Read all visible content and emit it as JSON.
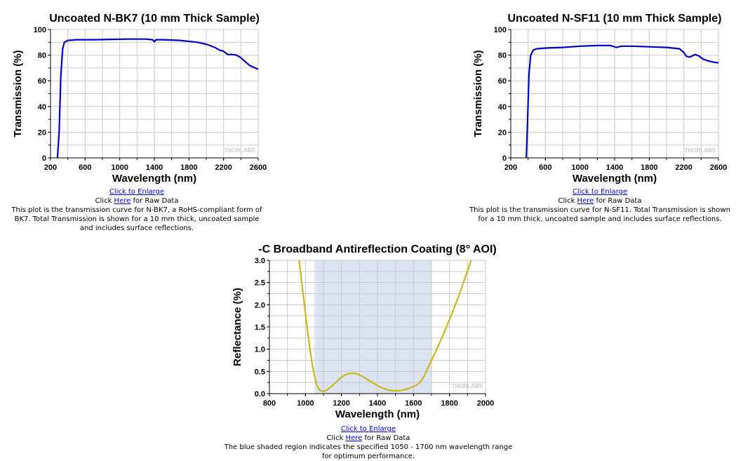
{
  "charts": {
    "bk7": {
      "caption": {
        "enlarge": "Click to Enlarge",
        "raw_prefix": "Click ",
        "raw_link": "Here",
        "raw_suffix": " for Raw Data",
        "description": "This plot is the transmission curve for N-BK7, a RoHS-compliant form of BK7. Total Transmission is shown for a 10 mm thick, uncoated sample and includes surface reflections."
      }
    },
    "sf11": {
      "caption": {
        "enlarge": "Click to Enlarge",
        "raw_prefix": "Click ",
        "raw_link": "Here",
        "raw_suffix": " for Raw Data",
        "description": "This plot is the transmission curve for N-SF11. Total Transmission is shown for a 10 mm thick, uncoated sample and includes surface reflections."
      }
    },
    "coating": {
      "caption": {
        "enlarge": "Click to Enlarge",
        "raw_prefix": "Click ",
        "raw_link": "Here",
        "raw_suffix": " for Raw Data",
        "description": "The blue shaded region indicates the specified 1050 - 1700 nm wavelength range for optimum performance."
      }
    }
  },
  "watermark": "THORLABS",
  "chart_data": [
    {
      "id": "bk7",
      "type": "line",
      "title": "Uncoated N-BK7 (10 mm Thick Sample)",
      "xlabel": "Wavelength (nm)",
      "ylabel": "Transmission (%)",
      "xlim": [
        200,
        2600
      ],
      "ylim": [
        0,
        100
      ],
      "xticks": [
        200,
        600,
        1000,
        1400,
        1800,
        2200,
        2600
      ],
      "yticks": [
        0,
        20,
        40,
        60,
        80,
        100
      ],
      "grid": true,
      "line_color": "#0000c8",
      "series": [
        {
          "x": [
            280,
            300,
            320,
            340,
            360,
            400,
            500,
            700,
            900,
            1100,
            1300,
            1380,
            1400,
            1420,
            1500,
            1700,
            1900,
            2000,
            2100,
            2150,
            2200,
            2250,
            2300,
            2350,
            2400,
            2450,
            2500,
            2550,
            2600
          ],
          "y": [
            0,
            20,
            65,
            85,
            90,
            91.5,
            92,
            92,
            92.3,
            92.5,
            92.5,
            92,
            90.5,
            92,
            92,
            91.5,
            90,
            88.5,
            86,
            84,
            83,
            80.5,
            80.5,
            80,
            78,
            75,
            72,
            70.5,
            69
          ]
        }
      ]
    },
    {
      "id": "sf11",
      "type": "line",
      "title": "Uncoated N-SF11 (10 mm Thick Sample)",
      "xlabel": "Wavelength (nm)",
      "ylabel": "Transmission (%)",
      "xlim": [
        200,
        2600
      ],
      "ylim": [
        0,
        100
      ],
      "xticks": [
        200,
        600,
        1000,
        1400,
        1800,
        2200,
        2600
      ],
      "yticks": [
        0,
        20,
        40,
        60,
        80,
        100
      ],
      "grid": true,
      "line_color": "#0000c8",
      "series": [
        {
          "x": [
            380,
            395,
            410,
            430,
            460,
            500,
            600,
            800,
            1000,
            1200,
            1350,
            1400,
            1420,
            1480,
            1600,
            1800,
            2000,
            2150,
            2200,
            2230,
            2270,
            2330,
            2370,
            2420,
            2480,
            2550,
            2600
          ],
          "y": [
            0,
            30,
            65,
            80,
            84,
            85,
            85.5,
            86,
            87,
            87.5,
            87.5,
            86.5,
            86,
            87,
            87,
            86.5,
            86,
            85,
            82,
            79,
            78.5,
            80.5,
            79.5,
            77,
            75.5,
            74.5,
            74
          ]
        }
      ]
    },
    {
      "id": "coating",
      "type": "line",
      "title": "-C Broadband Antireflection Coating (8° AOI)",
      "xlabel": "Wavelength (nm)",
      "ylabel": "Reflectance (%)",
      "xlim": [
        800,
        2000
      ],
      "ylim": [
        0,
        3.0
      ],
      "xticks": [
        800,
        1000,
        1200,
        1400,
        1600,
        1800,
        2000
      ],
      "yticks": [
        0.0,
        0.5,
        1.0,
        1.5,
        2.0,
        2.5,
        3.0
      ],
      "grid": true,
      "line_color": "#c9b91a",
      "shaded_range": [
        1050,
        1700
      ],
      "shade_color": "#dce4f4",
      "series": [
        {
          "x": [
            965,
            980,
            1000,
            1020,
            1040,
            1060,
            1080,
            1100,
            1120,
            1140,
            1160,
            1180,
            1200,
            1220,
            1240,
            1260,
            1280,
            1300,
            1320,
            1340,
            1360,
            1380,
            1400,
            1420,
            1440,
            1460,
            1480,
            1500,
            1520,
            1540,
            1560,
            1580,
            1600,
            1620,
            1640,
            1660,
            1680,
            1700,
            1720,
            1740,
            1760,
            1780,
            1800,
            1820,
            1840,
            1860,
            1880,
            1900,
            1920
          ],
          "y": [
            3.0,
            2.5,
            1.8,
            1.15,
            0.6,
            0.22,
            0.07,
            0.05,
            0.08,
            0.15,
            0.22,
            0.3,
            0.37,
            0.42,
            0.45,
            0.46,
            0.45,
            0.42,
            0.38,
            0.33,
            0.28,
            0.23,
            0.18,
            0.14,
            0.11,
            0.08,
            0.07,
            0.06,
            0.065,
            0.08,
            0.1,
            0.13,
            0.16,
            0.2,
            0.27,
            0.4,
            0.58,
            0.75,
            0.92,
            1.1,
            1.28,
            1.47,
            1.67,
            1.87,
            2.08,
            2.3,
            2.53,
            2.76,
            3.0
          ]
        }
      ]
    }
  ]
}
